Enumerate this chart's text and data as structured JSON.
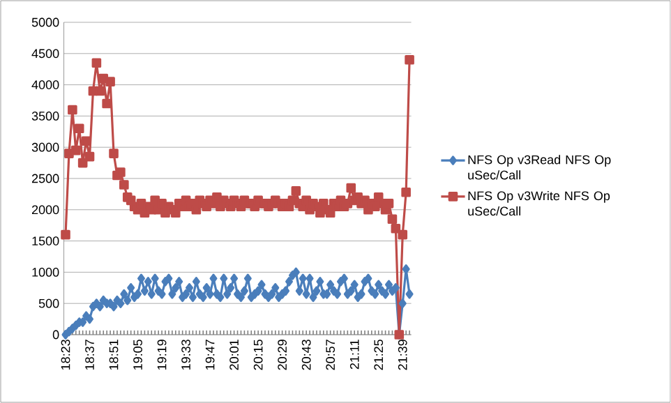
{
  "chart_data": {
    "type": "line",
    "categories": [
      "18:23",
      null,
      null,
      null,
      null,
      null,
      null,
      "18:37",
      null,
      null,
      null,
      null,
      null,
      null,
      "18:51",
      null,
      null,
      null,
      null,
      null,
      null,
      "19:05",
      null,
      null,
      null,
      null,
      null,
      null,
      "19:19",
      null,
      null,
      null,
      null,
      null,
      null,
      "19:33",
      null,
      null,
      null,
      null,
      null,
      null,
      "19:47",
      null,
      null,
      null,
      null,
      null,
      null,
      "20:01",
      null,
      null,
      null,
      null,
      null,
      null,
      "20:15",
      null,
      null,
      null,
      null,
      null,
      null,
      "20:29",
      null,
      null,
      null,
      null,
      null,
      null,
      "20:43",
      null,
      null,
      null,
      null,
      null,
      null,
      "20:57",
      null,
      null,
      null,
      null,
      null,
      null,
      "21:11",
      null,
      null,
      null,
      null,
      null,
      null,
      "21:25",
      null,
      null,
      null,
      null,
      null,
      null,
      "21:39",
      null,
      null
    ],
    "series": [
      {
        "name": "NFS Op v3Read NFS Op uSec/Call",
        "color": "#4a7ebb",
        "marker": "diamond",
        "values": [
          0,
          50,
          100,
          150,
          200,
          200,
          300,
          250,
          450,
          500,
          450,
          550,
          500,
          500,
          450,
          550,
          500,
          650,
          550,
          750,
          600,
          650,
          900,
          700,
          850,
          650,
          900,
          700,
          650,
          850,
          900,
          650,
          750,
          850,
          600,
          650,
          750,
          600,
          850,
          650,
          600,
          750,
          650,
          900,
          650,
          600,
          900,
          650,
          750,
          900,
          650,
          600,
          700,
          900,
          600,
          650,
          700,
          800,
          650,
          600,
          650,
          750,
          600,
          650,
          700,
          850,
          950,
          1000,
          700,
          900,
          650,
          900,
          600,
          700,
          850,
          650,
          650,
          800,
          700,
          650,
          850,
          900,
          650,
          700,
          800,
          600,
          650,
          850,
          900,
          700,
          650,
          800,
          700,
          650,
          800,
          700,
          750,
          0,
          500,
          1050,
          650
        ]
      },
      {
        "name": "NFS Op v3Write NFS Op uSec/Call",
        "color": "#be4b48",
        "marker": "square",
        "values": [
          1600,
          2900,
          3600,
          2950,
          3300,
          2750,
          3100,
          2850,
          3900,
          4350,
          3900,
          4100,
          3700,
          4050,
          2900,
          2550,
          2600,
          2400,
          2200,
          2150,
          2050,
          2000,
          2100,
          1950,
          2050,
          2000,
          2150,
          2000,
          2100,
          1950,
          2050,
          2000,
          1950,
          2100,
          2050,
          2150,
          2050,
          2100,
          2000,
          2150,
          2100,
          2050,
          2150,
          2100,
          2200,
          2050,
          2150,
          2100,
          2050,
          2150,
          2100,
          2050,
          2150,
          2100,
          2100,
          2050,
          2150,
          2100,
          2100,
          2050,
          2100,
          2150,
          2100,
          2050,
          2100,
          2050,
          2150,
          2300,
          2100,
          2050,
          2150,
          2000,
          2100,
          2050,
          1950,
          2100,
          2000,
          1950,
          2100,
          2050,
          2150,
          2050,
          2100,
          2350,
          2150,
          2200,
          2100,
          2150,
          2000,
          2100,
          2050,
          2200,
          2100,
          2000,
          2100,
          1850,
          1700,
          0,
          1600,
          2280,
          4400
        ]
      }
    ],
    "ylim": [
      0,
      5000
    ],
    "yticks": [
      0,
      500,
      1000,
      1500,
      2000,
      2500,
      3000,
      3500,
      4000,
      4500,
      5000
    ],
    "grid": "y",
    "legend": "right",
    "line_style": "solid"
  }
}
